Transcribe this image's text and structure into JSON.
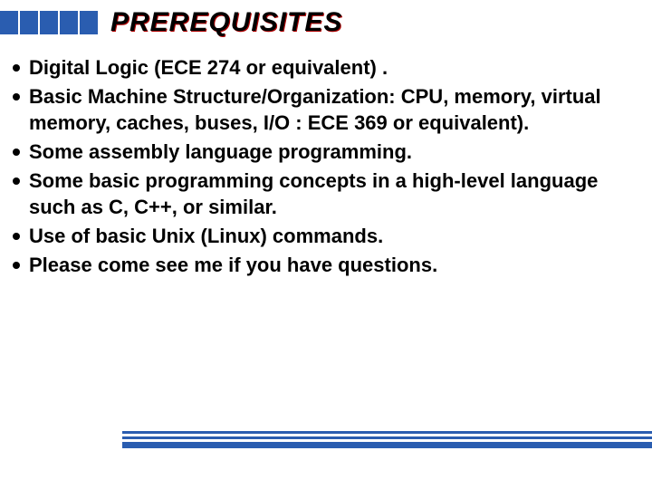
{
  "title": "PREREQUISITES",
  "title_color": "#000000",
  "title_shadow_color": "#b00000",
  "accent_color": "#2a5db0",
  "background_color": "#ffffff",
  "text_color": "#000000",
  "bullets": [
    "Digital Logic (ECE 274 or equivalent) .",
    " Basic Machine Structure/Organization: CPU, memory,  virtual memory, caches, buses, I/O : ECE 369 or equivalent).",
    "Some assembly language programming.",
    "Some basic programming concepts in a high-level language such as C, C++, or similar.",
    "Use of basic Unix (Linux)  commands.",
    "Please come see me if you have questions."
  ],
  "top_blocks_count": 5,
  "font_family": "Arial, Helvetica, sans-serif",
  "title_fontsize": 30,
  "body_fontsize": 22
}
